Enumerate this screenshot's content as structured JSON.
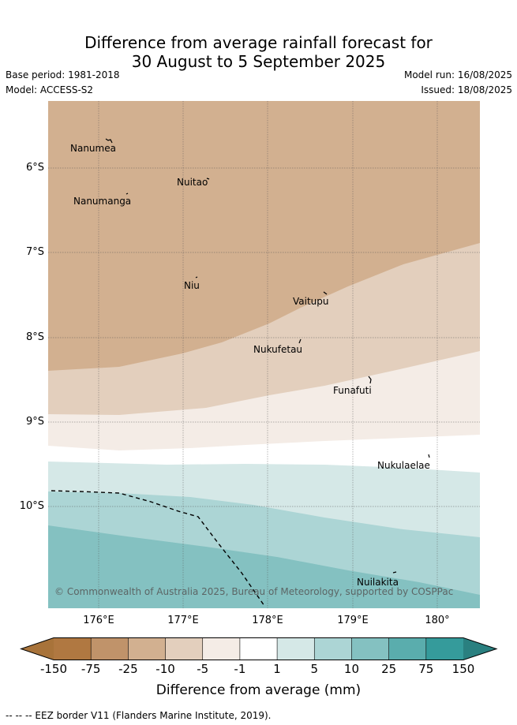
{
  "title_line1": "Difference from average rainfall forecast for",
  "title_line2": "30 August to 5 September 2025",
  "base_period": "Base period: 1981-2018",
  "model": "Model: ACCESS-S2",
  "model_run": "Model run: 16/08/2025",
  "issued": "Issued: 18/08/2025",
  "copyright": "© Commonwealth of Australia 2025, Bureau of Meteorology, supported by COSPPac",
  "lat_labels": [
    "6°S",
    "7°S",
    "8°S",
    "9°S",
    "10°S"
  ],
  "lon_labels": [
    "176°E",
    "177°E",
    "178°E",
    "179°E",
    "180°"
  ],
  "places": [
    "Nanumea",
    "Nuitao",
    "Nanumanga",
    "Niu",
    "Vaitupu",
    "Nukufetau",
    "Funafuti",
    "Nukulaelae",
    "Nuilakita"
  ],
  "colorbar": {
    "ticks": [
      "-150",
      "-75",
      "-25",
      "-10",
      "-5",
      "-1",
      "1",
      "5",
      "10",
      "25",
      "75",
      "150"
    ],
    "colors": [
      "#a8733a",
      "#b07841",
      "#c0936a",
      "#d2b090",
      "#e3cfbd",
      "#f4ece6",
      "#ffffff",
      "#d5e8e7",
      "#acd5d5",
      "#84c1c1",
      "#5aadad",
      "#359b9b",
      "#2a8080"
    ],
    "label": "Difference from average (mm)"
  },
  "footnote": "-- -- -- EEZ border V11 (Flanders Marine Institute, 2019)."
}
